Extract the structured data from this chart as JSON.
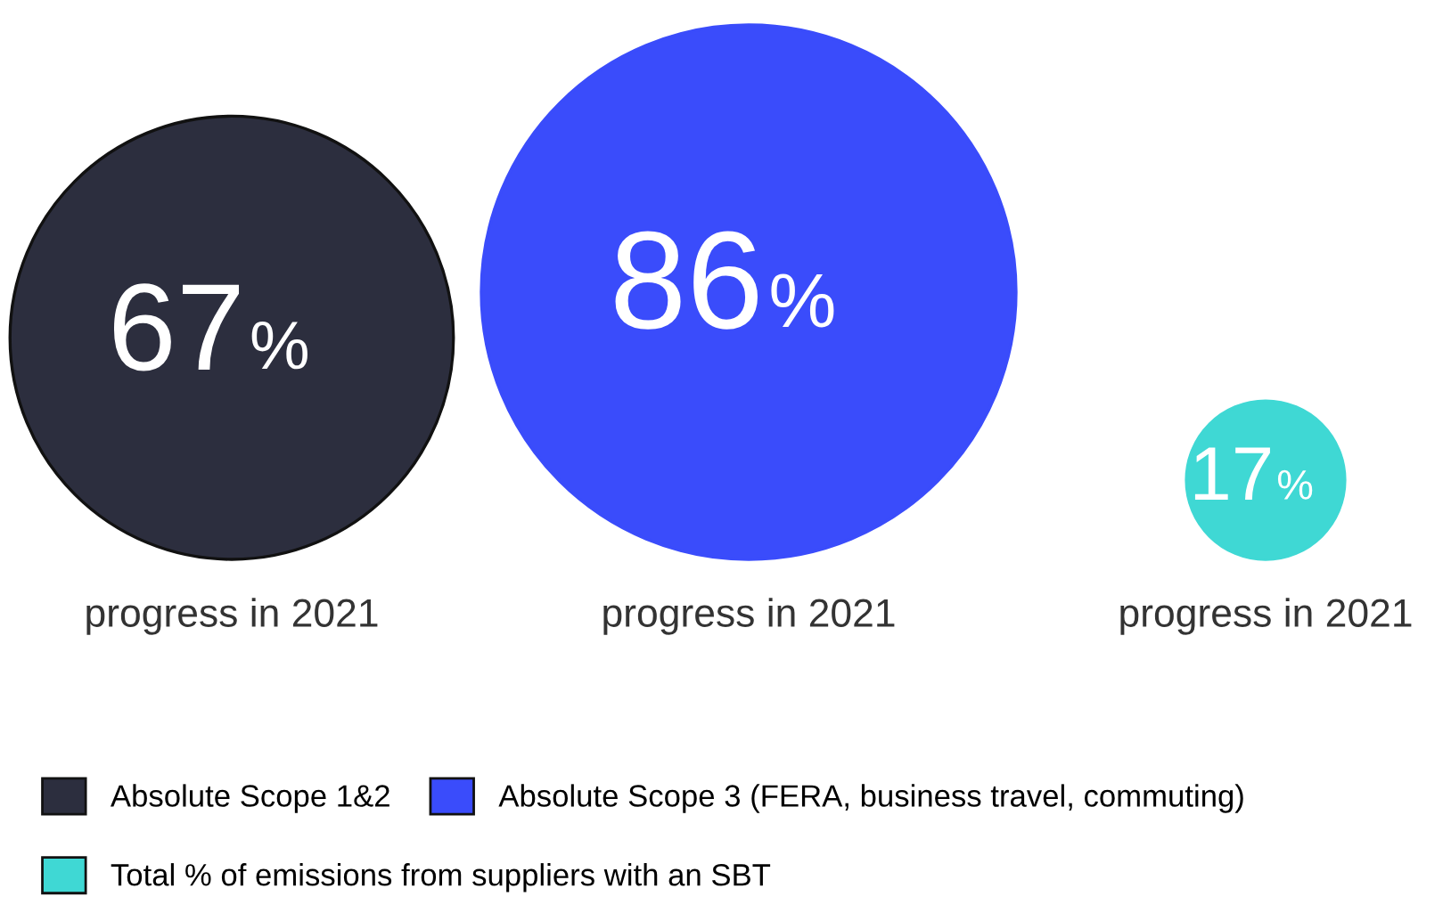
{
  "chart_data": {
    "type": "other",
    "categories": [
      "progress in 2021",
      "progress in 2021",
      "progress in 2021"
    ],
    "legend": "bottom",
    "series": [
      {
        "name": "Absolute Scope 1&2",
        "color": "#2c2e3e",
        "values": [
          67,
          null,
          null
        ],
        "value_labels": [
          "67%",
          null,
          null
        ]
      },
      {
        "name": "Absolute Scope 3 (FERA, business travel, commuting)",
        "color": "#3a4cfb",
        "values": [
          null,
          86,
          null
        ],
        "value_labels": [
          null,
          "86%",
          null
        ]
      },
      {
        "name": "Total % of emissions from suppliers with an SBT",
        "color": "#3fd8d4",
        "values": [
          null,
          null,
          17
        ],
        "value_labels": [
          null,
          null,
          "17%"
        ]
      }
    ]
  }
}
